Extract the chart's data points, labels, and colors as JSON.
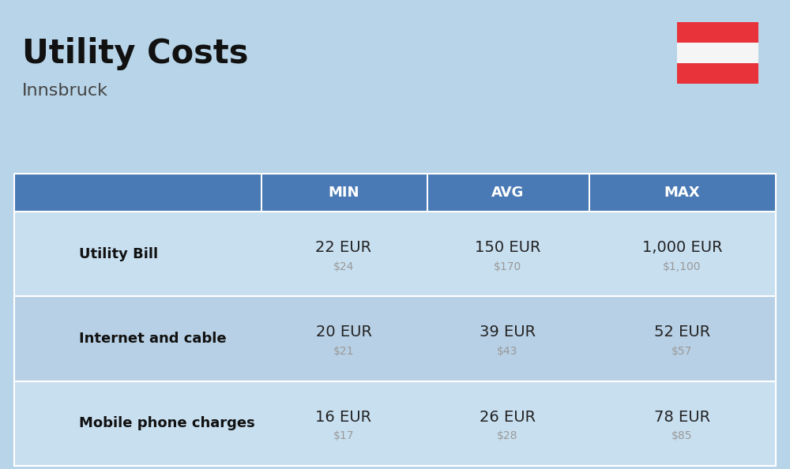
{
  "title": "Utility Costs",
  "subtitle": "Innsbruck",
  "background_color": "#b8d4e8",
  "header_bg_color": "#4a7ab5",
  "header_text_color": "#ffffff",
  "row_bg_color_odd": "#c8dff0",
  "row_bg_color_even": "#b8d0e5",
  "col_header": [
    "MIN",
    "AVG",
    "MAX"
  ],
  "rows": [
    {
      "label": "Utility Bill",
      "min_eur": "22 EUR",
      "min_usd": "$24",
      "avg_eur": "150 EUR",
      "avg_usd": "$170",
      "max_eur": "1,000 EUR",
      "max_usd": "$1,100"
    },
    {
      "label": "Internet and cable",
      "min_eur": "20 EUR",
      "min_usd": "$21",
      "avg_eur": "39 EUR",
      "avg_usd": "$43",
      "max_eur": "52 EUR",
      "max_usd": "$57"
    },
    {
      "label": "Mobile phone charges",
      "min_eur": "16 EUR",
      "min_usd": "$17",
      "avg_eur": "26 EUR",
      "avg_usd": "$28",
      "max_eur": "78 EUR",
      "max_usd": "$85"
    }
  ],
  "flag_red": "#e8333a",
  "flag_white": "#f5f5f5",
  "title_fontsize": 30,
  "subtitle_fontsize": 16,
  "header_fontsize": 13,
  "label_fontsize": 13,
  "eur_fontsize": 14,
  "usd_fontsize": 10
}
